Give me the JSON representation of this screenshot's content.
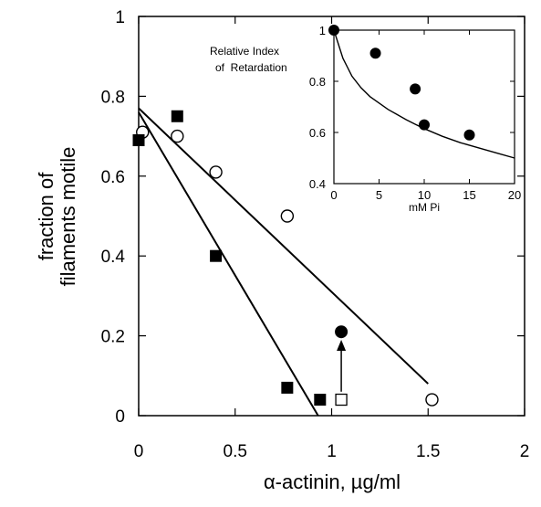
{
  "chart_data": [
    {
      "type": "scatter",
      "xlabel": "α-actinin, µg/ml",
      "ylabel_lines": [
        "fraction of",
        "filaments motile"
      ],
      "xlim": [
        0,
        2
      ],
      "ylim": [
        0,
        1
      ],
      "xticks": [
        "0",
        "0.5",
        "1",
        "1.5",
        "2"
      ],
      "xtick_values": [
        0,
        0.5,
        1,
        1.5,
        2
      ],
      "yticks": [
        "0",
        "0.2",
        "0.4",
        "0.6",
        "0.8",
        "1"
      ],
      "ytick_values": [
        0,
        0.2,
        0.4,
        0.6,
        0.8,
        1
      ],
      "series": [
        {
          "marker": "open-circle",
          "points": [
            [
              0.02,
              0.71
            ],
            [
              0.2,
              0.7
            ],
            [
              0.4,
              0.61
            ],
            [
              0.77,
              0.5
            ],
            [
              1.52,
              0.04
            ]
          ]
        },
        {
          "marker": "filled-square",
          "points": [
            [
              0.0,
              0.69
            ],
            [
              0.2,
              0.75
            ],
            [
              0.4,
              0.4
            ],
            [
              0.77,
              0.07
            ],
            [
              0.94,
              0.04
            ]
          ]
        },
        {
          "marker": "open-square",
          "points": [
            [
              1.05,
              0.04
            ]
          ]
        },
        {
          "marker": "filled-circle",
          "points": [
            [
              1.05,
              0.21
            ]
          ]
        }
      ],
      "fit_lines": [
        {
          "from": [
            0.0,
            0.77
          ],
          "to": [
            1.5,
            0.08
          ]
        },
        {
          "from": [
            0.0,
            0.76
          ],
          "to": [
            0.93,
            0.0
          ]
        }
      ],
      "annotation_arrow": {
        "from": [
          1.05,
          0.06
        ],
        "to": [
          1.05,
          0.19
        ]
      },
      "grid": false,
      "frame": "box"
    },
    {
      "type": "scatter",
      "title_lines": [
        "Relative Index",
        "of  Retardation"
      ],
      "xlabel": "mM Pi",
      "xlim": [
        0,
        20
      ],
      "ylim": [
        0.4,
        1.0
      ],
      "xticks": [
        "0",
        "5",
        "10",
        "15",
        "20"
      ],
      "xtick_values": [
        0,
        5,
        10,
        15,
        20
      ],
      "yticks": [
        "0.4",
        "0.6",
        "0.8",
        "1"
      ],
      "ytick_values": [
        0.4,
        0.6,
        0.8,
        1.0
      ],
      "series": [
        {
          "marker": "filled-circle",
          "points": [
            [
              0,
              1.0
            ],
            [
              4.6,
              0.91
            ],
            [
              9,
              0.77
            ],
            [
              10,
              0.63
            ],
            [
              15,
              0.59
            ]
          ]
        }
      ],
      "curve": [
        [
          0,
          1.0
        ],
        [
          1,
          0.89
        ],
        [
          2,
          0.82
        ],
        [
          3,
          0.775
        ],
        [
          4,
          0.74
        ],
        [
          5,
          0.715
        ],
        [
          6,
          0.69
        ],
        [
          7,
          0.67
        ],
        [
          8,
          0.65
        ],
        [
          9,
          0.632
        ],
        [
          10,
          0.615
        ],
        [
          12,
          0.585
        ],
        [
          14,
          0.56
        ],
        [
          16,
          0.54
        ],
        [
          18,
          0.52
        ],
        [
          20,
          0.5
        ]
      ],
      "grid": false,
      "frame": "box"
    }
  ]
}
